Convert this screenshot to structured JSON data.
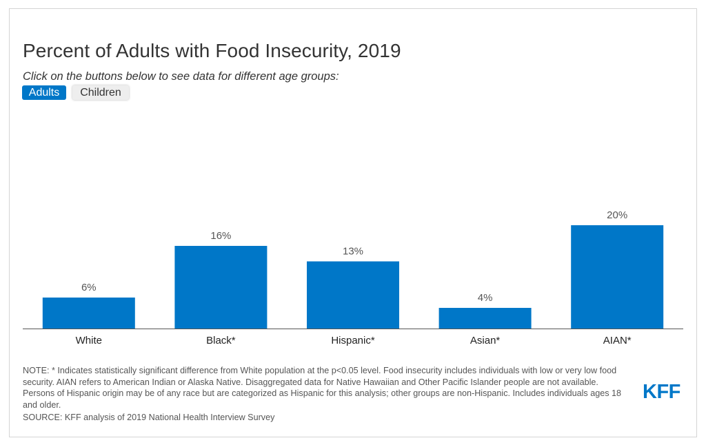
{
  "header": {
    "title": "Percent of Adults with Food Insecurity, 2019",
    "subtitle": "Click on the buttons below to see data for different age groups:"
  },
  "buttons": {
    "adults_label": "Adults",
    "children_label": "Children",
    "active": "Adults"
  },
  "colors": {
    "bar": "#0077c8",
    "active_button": "#0077c8",
    "inactive_button": "#eeeeee"
  },
  "chart_data": {
    "type": "bar",
    "categories": [
      "White",
      "Black*",
      "Hispanic*",
      "Asian*",
      "AIAN*"
    ],
    "values": [
      6,
      16,
      13,
      4,
      20
    ],
    "data_labels": [
      "6%",
      "16%",
      "13%",
      "4%",
      "20%"
    ],
    "title": "Percent of Adults with Food Insecurity, 2019",
    "xlabel": "",
    "ylabel": "",
    "ylim": [
      0,
      40
    ],
    "grid": false,
    "legend": "none"
  },
  "footer": {
    "note": "NOTE: * Indicates statistically significant difference from White population at the p<0.05 level. Food insecurity includes individuals with low or very low food security. AIAN refers to American Indian or Alaska Native. Disaggregated data for Native Hawaiian and Other Pacific Islander people are not available. Persons of Hispanic origin may be of any race but are categorized as Hispanic for this analysis; other groups are non-Hispanic. Includes individuals ages 18 and older.",
    "source": "SOURCE: KFF analysis of 2019 National Health Interview Survey",
    "logo_text": "KFF"
  }
}
